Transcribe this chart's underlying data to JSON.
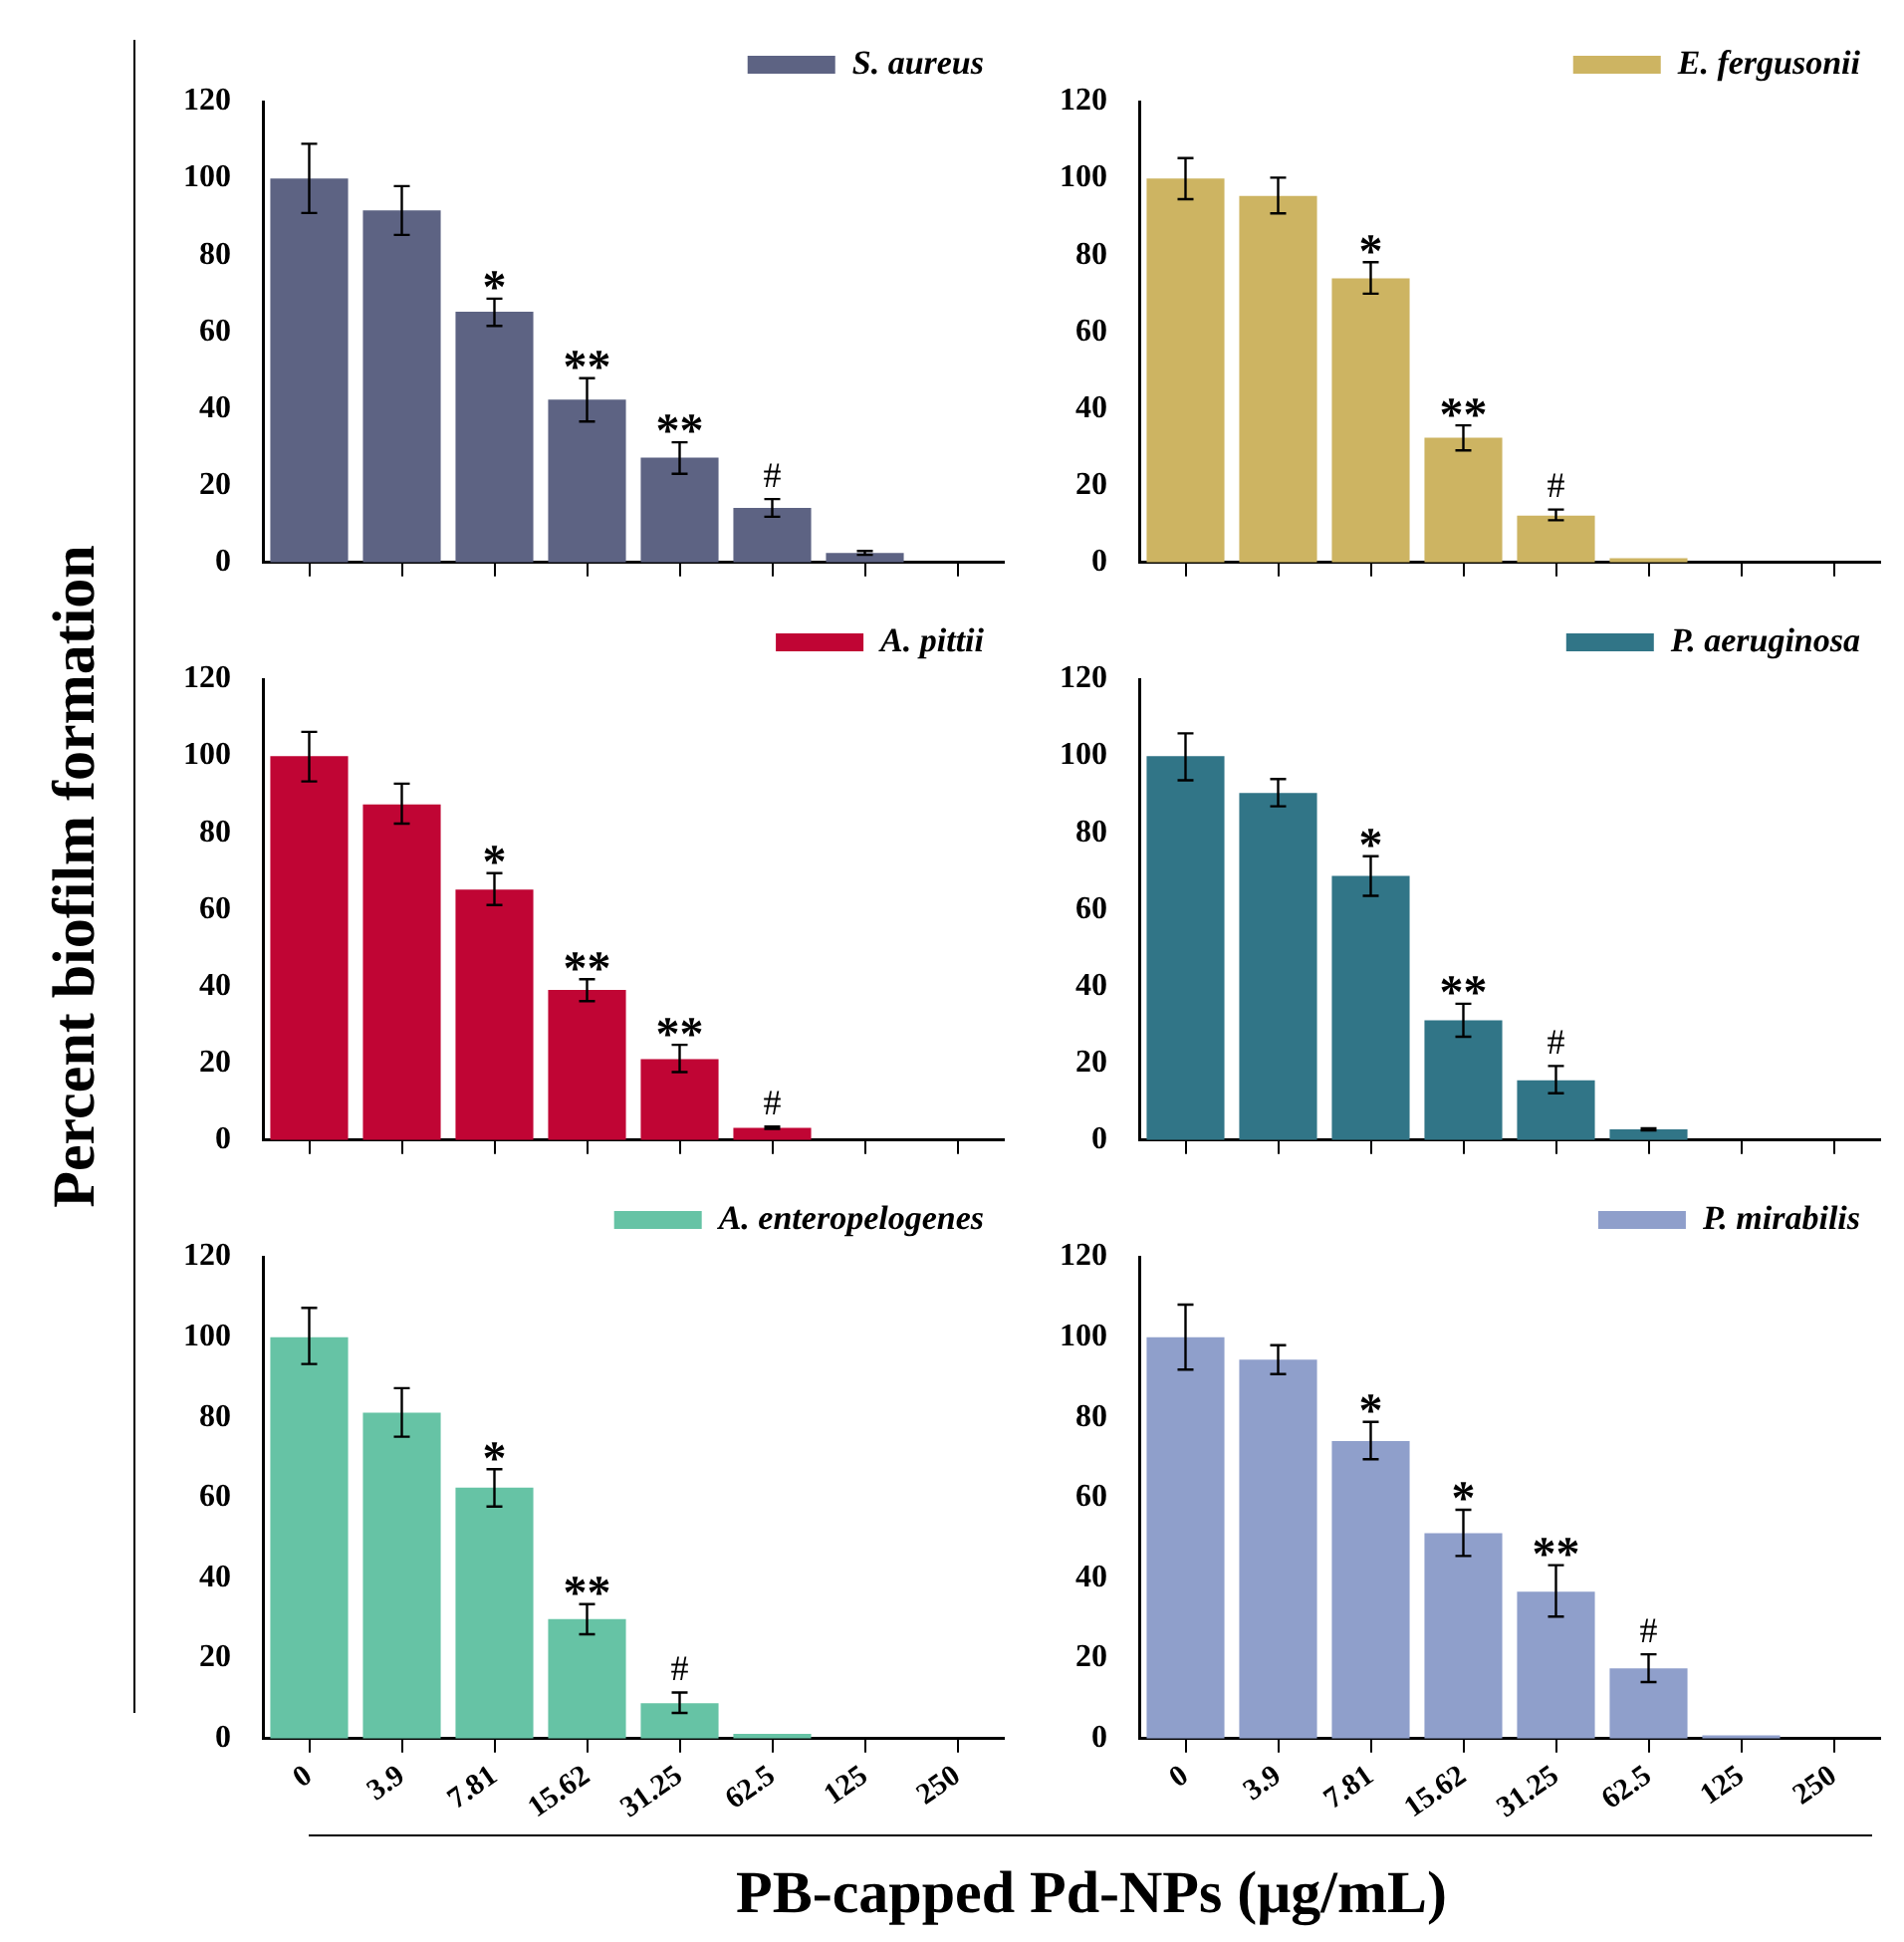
{
  "chart_data": [
    {
      "type": "bar",
      "categories": [
        "0",
        "3.9",
        "7.81",
        "15.62",
        "31.25",
        "62.5",
        "125",
        "250"
      ],
      "ylabel": "Percent biofilm formation",
      "ylim": [
        0,
        120
      ],
      "yticks": [
        0,
        20,
        40,
        60,
        80,
        100,
        120
      ],
      "legend": "top right",
      "tick_labels": "y",
      "series": [
        {
          "name": "S. aureus",
          "color": "#5d6383",
          "values": [
            100,
            91.7,
            65.3,
            42.4,
            27.3,
            14.2,
            2.5,
            0
          ],
          "errors": [
            [
              91,
              109
            ],
            [
              85.3,
              98
            ],
            [
              61.6,
              68.7
            ],
            [
              36.7,
              48
            ],
            [
              23.1,
              31.3
            ],
            [
              11.9,
              16.5
            ],
            [
              2,
              3
            ],
            null
          ]
        }
      ],
      "annotations": [
        {
          "text": "*",
          "x": "7.81",
          "y": 68.7
        },
        {
          "text": "**",
          "x": "15.62",
          "y": 48
        },
        {
          "text": "**",
          "x": "31.25",
          "y": 31.3
        },
        {
          "text": "#",
          "x": "62.5",
          "y": 16.5
        }
      ]
    },
    {
      "type": "bar",
      "categories": [
        "0",
        "3.9",
        "7.81",
        "15.62",
        "31.25",
        "62.5",
        "125",
        "250"
      ],
      "ylim": [
        0,
        120
      ],
      "yticks": [
        0,
        20,
        40,
        60,
        80,
        100,
        120
      ],
      "legend": "top right",
      "tick_labels": "y",
      "series": [
        {
          "name": "E. fergusonii",
          "color": "#cdb462",
          "values": [
            100,
            95.4,
            74,
            32.5,
            12.2,
            1.1,
            0,
            0
          ],
          "errors": [
            [
              94.6,
              105.3
            ],
            [
              90.9,
              100.2
            ],
            [
              70,
              78.2
            ],
            [
              29.2,
              35.7
            ],
            [
              11,
              13.8
            ],
            null,
            null,
            null
          ]
        }
      ],
      "annotations": [
        {
          "text": "*",
          "x": "7.81",
          "y": 78.2
        },
        {
          "text": "**",
          "x": "15.62",
          "y": 35.7
        },
        {
          "text": "#",
          "x": "31.25",
          "y": 13.8
        }
      ]
    },
    {
      "type": "bar",
      "categories": [
        "0",
        "3.9",
        "7.81",
        "15.62",
        "31.25",
        "62.5",
        "125",
        "250"
      ],
      "ylim": [
        0,
        120
      ],
      "yticks": [
        0,
        20,
        40,
        60,
        80,
        100,
        120
      ],
      "legend": "top right",
      "tick_labels": "y",
      "series": [
        {
          "name": "A. pittii",
          "color": "#c00534",
          "values": [
            100,
            87.4,
            65.2,
            39.1,
            21.1,
            3.2,
            0,
            0
          ],
          "errors": [
            [
              93.4,
              106.3
            ],
            [
              82.4,
              92.8
            ],
            [
              61.2,
              69.5
            ],
            [
              36.2,
              41.9
            ],
            [
              17.7,
              24.8
            ],
            [
              2.9,
              3.5
            ],
            null,
            null
          ]
        }
      ],
      "annotations": [
        {
          "text": "*",
          "x": "7.81",
          "y": 69.5
        },
        {
          "text": "**",
          "x": "15.62",
          "y": 41.9
        },
        {
          "text": "**",
          "x": "31.25",
          "y": 24.8
        },
        {
          "text": "#",
          "x": "62.5",
          "y": 3.5
        }
      ]
    },
    {
      "type": "bar",
      "categories": [
        "0",
        "3.9",
        "7.81",
        "15.62",
        "31.25",
        "62.5",
        "125",
        "250"
      ],
      "ylim": [
        0,
        120
      ],
      "yticks": [
        0,
        20,
        40,
        60,
        80,
        100,
        120
      ],
      "legend": "top right",
      "tick_labels": "y",
      "series": [
        {
          "name": "P. aeruginosa",
          "color": "#317587",
          "values": [
            100,
            90.4,
            68.8,
            31.2,
            15.6,
            2.8,
            0,
            0
          ],
          "errors": [
            [
              93.7,
              105.9
            ],
            [
              86.9,
              94
            ],
            [
              63.6,
              73.9
            ],
            [
              26.9,
              35.5
            ],
            [
              12.2,
              19.3
            ],
            [
              2.5,
              3.1
            ],
            null,
            null
          ]
        }
      ],
      "annotations": [
        {
          "text": "*",
          "x": "7.81",
          "y": 73.9
        },
        {
          "text": "**",
          "x": "15.62",
          "y": 35.5
        },
        {
          "text": "#",
          "x": "31.25",
          "y": 19.3
        }
      ]
    },
    {
      "type": "bar",
      "categories": [
        "0",
        "3.9",
        "7.81",
        "15.62",
        "31.25",
        "62.5",
        "125",
        "250"
      ],
      "xlabel": "PB-capped Pd-NPs (μg/mL)",
      "ylim": [
        0,
        120
      ],
      "yticks": [
        0,
        20,
        40,
        60,
        80,
        100,
        120
      ],
      "legend": "top right",
      "series": [
        {
          "name": "A. enteropelogenes",
          "color": "#66c3a5",
          "values": [
            100,
            81.2,
            62.5,
            29.8,
            8.8,
            1.2,
            0,
            0
          ],
          "errors": [
            [
              93.3,
              107.3
            ],
            [
              75.2,
              87.3
            ],
            [
              57.8,
              67.1
            ],
            [
              26,
              33.5
            ],
            [
              6.4,
              11.5
            ],
            null,
            null,
            null
          ]
        }
      ],
      "annotations": [
        {
          "text": "*",
          "x": "7.81",
          "y": 67.1
        },
        {
          "text": "**",
          "x": "15.62",
          "y": 33.5
        },
        {
          "text": "#",
          "x": "31.25",
          "y": 11.5
        }
      ]
    },
    {
      "type": "bar",
      "categories": [
        "0",
        "3.9",
        "7.81",
        "15.62",
        "31.25",
        "62.5",
        "125",
        "250"
      ],
      "ylim": [
        0,
        120
      ],
      "yticks": [
        0,
        20,
        40,
        60,
        80,
        100,
        120
      ],
      "legend": "top right",
      "series": [
        {
          "name": "P. mirabilis",
          "color": "#8f9fcb",
          "values": [
            100,
            94.4,
            74.1,
            51.2,
            36.6,
            17.5,
            0.8,
            0
          ],
          "errors": [
            [
              91.9,
              108.1
            ],
            [
              90.8,
              98
            ],
            [
              69.6,
              78.9
            ],
            [
              45.5,
              57
            ],
            [
              30.4,
              43.2
            ],
            [
              14.1,
              21
            ],
            null,
            null
          ]
        }
      ],
      "annotations": [
        {
          "text": "*",
          "x": "7.81",
          "y": 78.9
        },
        {
          "text": "*",
          "x": "15.62",
          "y": 57
        },
        {
          "text": "**",
          "x": "31.25",
          "y": 43.2
        },
        {
          "text": "#",
          "x": "62.5",
          "y": 21
        }
      ]
    }
  ]
}
